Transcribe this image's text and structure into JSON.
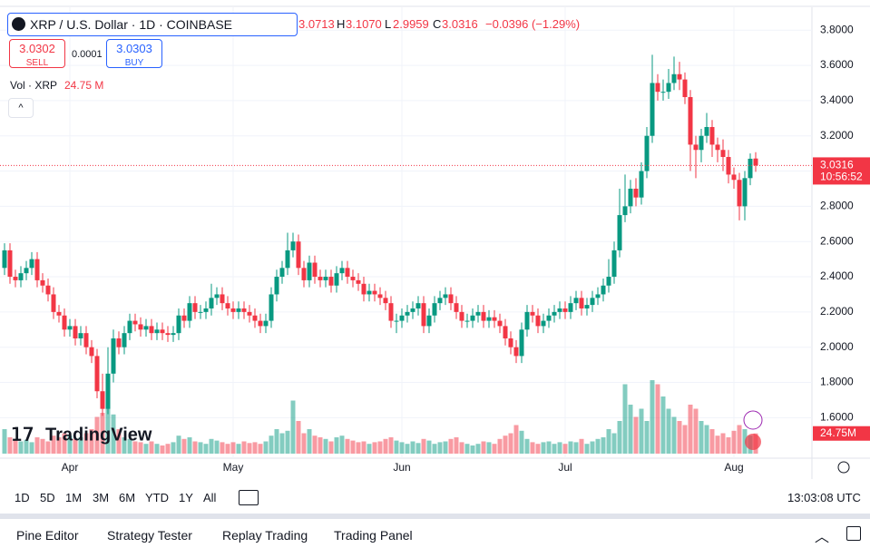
{
  "header": {
    "symbol": "XRP / U.S. Dollar · 1D · COINBASE",
    "open": "3.0713",
    "high_key": "H",
    "high": "3.1070",
    "low_key": "L",
    "low": "2.9959",
    "close_key": "C",
    "close": "3.0316",
    "change": "−0.0396 (−1.29%)",
    "sell_price": "3.0302",
    "sell": "SELL",
    "spread": "0.0001",
    "buy_price": "3.0303",
    "buy": "BUY",
    "volume_title": "Vol · XRP",
    "volume_value": "24.75 M"
  },
  "chart_data": {
    "type": "candlestick",
    "up_color": "#089981",
    "down_color": "#f23645",
    "grid": true,
    "ylim": [
      1.37,
      3.93
    ],
    "yticks": [
      {
        "value": 1.6,
        "label": "1.6000"
      },
      {
        "value": 1.8,
        "label": "1.8000"
      },
      {
        "value": 2.0,
        "label": "2.0000"
      },
      {
        "value": 2.2,
        "label": "2.2000"
      },
      {
        "value": 2.4,
        "label": "2.4000"
      },
      {
        "value": 2.6,
        "label": "2.6000"
      },
      {
        "value": 2.8,
        "label": "2.8000"
      },
      {
        "value": 3.0,
        "label": "3.0000"
      },
      {
        "value": 3.2,
        "label": "3.2000"
      },
      {
        "value": 3.4,
        "label": "3.4000"
      },
      {
        "value": 3.6,
        "label": "3.6000"
      },
      {
        "value": 3.8,
        "label": "3.8000"
      }
    ],
    "vlim": [
      0,
      100
    ],
    "categories": [
      null,
      null,
      null,
      null,
      null,
      null,
      null,
      null,
      null,
      null,
      null,
      null,
      "Apr",
      null,
      null,
      null,
      null,
      null,
      null,
      null,
      null,
      null,
      null,
      null,
      null,
      null,
      null,
      null,
      null,
      null,
      null,
      null,
      null,
      null,
      null,
      null,
      null,
      null,
      null,
      null,
      null,
      null,
      "May",
      null,
      null,
      null,
      null,
      null,
      null,
      null,
      null,
      null,
      null,
      null,
      null,
      null,
      null,
      null,
      null,
      null,
      null,
      null,
      null,
      null,
      null,
      null,
      null,
      null,
      null,
      null,
      null,
      null,
      null,
      "Jun",
      null,
      null,
      null,
      null,
      null,
      null,
      null,
      null,
      null,
      null,
      null,
      null,
      null,
      null,
      null,
      null,
      null,
      null,
      null,
      null,
      null,
      null,
      null,
      null,
      null,
      null,
      null,
      null,
      null,
      "Jul",
      null,
      null,
      null,
      null,
      null,
      null,
      null,
      null,
      null,
      null,
      null,
      null,
      null,
      null,
      null,
      null,
      null,
      null,
      null,
      null,
      null,
      null,
      null,
      null,
      null,
      null,
      null,
      null,
      null,
      null,
      "Aug",
      null,
      null,
      null,
      null
    ],
    "ohlc": [
      [
        2.45,
        2.59,
        2.41,
        2.55
      ],
      [
        2.55,
        2.59,
        2.36,
        2.4
      ],
      [
        2.4,
        2.44,
        2.34,
        2.38
      ],
      [
        2.38,
        2.46,
        2.34,
        2.42
      ],
      [
        2.42,
        2.49,
        2.38,
        2.45
      ],
      [
        2.45,
        2.54,
        2.41,
        2.5
      ],
      [
        2.5,
        2.54,
        2.34,
        2.38
      ],
      [
        2.38,
        2.42,
        2.31,
        2.35
      ],
      [
        2.35,
        2.39,
        2.26,
        2.3
      ],
      [
        2.3,
        2.34,
        2.16,
        2.2
      ],
      [
        2.2,
        2.24,
        2.14,
        2.18
      ],
      [
        2.18,
        2.22,
        2.06,
        2.1
      ],
      [
        2.1,
        2.16,
        2.06,
        2.12
      ],
      [
        2.12,
        2.16,
        2.01,
        2.05
      ],
      [
        2.05,
        2.12,
        2.01,
        2.08
      ],
      [
        2.08,
        2.12,
        1.96,
        2.0
      ],
      [
        2.0,
        2.04,
        1.91,
        1.95
      ],
      [
        1.95,
        1.99,
        1.71,
        1.75
      ],
      [
        1.75,
        1.85,
        1.61,
        1.65
      ],
      [
        1.65,
        2.0,
        1.62,
        1.85
      ],
      [
        1.85,
        2.1,
        1.8,
        2.05
      ],
      [
        2.05,
        2.09,
        1.96,
        2.0
      ],
      [
        2.0,
        2.12,
        1.96,
        2.08
      ],
      [
        2.08,
        2.19,
        2.04,
        2.15
      ],
      [
        2.15,
        2.19,
        2.09,
        2.13
      ],
      [
        2.13,
        2.17,
        2.06,
        2.1
      ],
      [
        2.1,
        2.16,
        2.06,
        2.12
      ],
      [
        2.12,
        2.16,
        2.04,
        2.08
      ],
      [
        2.08,
        2.14,
        2.04,
        2.1
      ],
      [
        2.1,
        2.14,
        2.04,
        2.08
      ],
      [
        2.08,
        2.12,
        2.03,
        2.07
      ],
      [
        2.07,
        2.12,
        2.03,
        2.08
      ],
      [
        2.08,
        2.22,
        2.04,
        2.18
      ],
      [
        2.18,
        2.22,
        2.11,
        2.15
      ],
      [
        2.15,
        2.29,
        2.11,
        2.25
      ],
      [
        2.25,
        2.29,
        2.16,
        2.2
      ],
      [
        2.2,
        2.24,
        2.16,
        2.2
      ],
      [
        2.2,
        2.26,
        2.16,
        2.22
      ],
      [
        2.22,
        2.36,
        2.18,
        2.28
      ],
      [
        2.28,
        2.34,
        2.24,
        2.3
      ],
      [
        2.3,
        2.34,
        2.21,
        2.25
      ],
      [
        2.25,
        2.29,
        2.18,
        2.22
      ],
      [
        2.22,
        2.26,
        2.16,
        2.2
      ],
      [
        2.2,
        2.26,
        2.16,
        2.22
      ],
      [
        2.22,
        2.26,
        2.16,
        2.2
      ],
      [
        2.2,
        2.24,
        2.14,
        2.18
      ],
      [
        2.18,
        2.22,
        2.11,
        2.15
      ],
      [
        2.15,
        2.19,
        2.08,
        2.12
      ],
      [
        2.12,
        2.19,
        2.08,
        2.15
      ],
      [
        2.15,
        2.34,
        2.11,
        2.3
      ],
      [
        2.3,
        2.44,
        2.26,
        2.4
      ],
      [
        2.4,
        2.49,
        2.36,
        2.45
      ],
      [
        2.45,
        2.65,
        2.41,
        2.55
      ],
      [
        2.55,
        2.65,
        2.51,
        2.6
      ],
      [
        2.6,
        2.64,
        2.41,
        2.45
      ],
      [
        2.45,
        2.49,
        2.34,
        2.38
      ],
      [
        2.38,
        2.52,
        2.34,
        2.48
      ],
      [
        2.48,
        2.52,
        2.36,
        2.4
      ],
      [
        2.4,
        2.44,
        2.34,
        2.38
      ],
      [
        2.38,
        2.44,
        2.34,
        2.4
      ],
      [
        2.4,
        2.44,
        2.31,
        2.35
      ],
      [
        2.35,
        2.46,
        2.31,
        2.42
      ],
      [
        2.42,
        2.49,
        2.38,
        2.45
      ],
      [
        2.45,
        2.49,
        2.36,
        2.4
      ],
      [
        2.4,
        2.44,
        2.34,
        2.38
      ],
      [
        2.38,
        2.42,
        2.32,
        2.36
      ],
      [
        2.36,
        2.4,
        2.26,
        2.3
      ],
      [
        2.3,
        2.36,
        2.26,
        2.32
      ],
      [
        2.32,
        2.36,
        2.26,
        2.3
      ],
      [
        2.3,
        2.34,
        2.24,
        2.28
      ],
      [
        2.28,
        2.32,
        2.21,
        2.25
      ],
      [
        2.25,
        2.29,
        2.11,
        2.15
      ],
      [
        2.15,
        2.19,
        2.08,
        2.15
      ],
      [
        2.15,
        2.22,
        2.11,
        2.18
      ],
      [
        2.18,
        2.24,
        2.14,
        2.2
      ],
      [
        2.2,
        2.26,
        2.16,
        2.22
      ],
      [
        2.22,
        2.29,
        2.18,
        2.25
      ],
      [
        2.25,
        2.29,
        2.08,
        2.12
      ],
      [
        2.12,
        2.22,
        2.08,
        2.18
      ],
      [
        2.18,
        2.29,
        2.14,
        2.25
      ],
      [
        2.25,
        2.32,
        2.21,
        2.28
      ],
      [
        2.28,
        2.34,
        2.24,
        2.3
      ],
      [
        2.3,
        2.34,
        2.21,
        2.25
      ],
      [
        2.25,
        2.29,
        2.16,
        2.2
      ],
      [
        2.2,
        2.24,
        2.11,
        2.15
      ],
      [
        2.15,
        2.19,
        2.11,
        2.15
      ],
      [
        2.15,
        2.22,
        2.11,
        2.18
      ],
      [
        2.18,
        2.24,
        2.14,
        2.2
      ],
      [
        2.2,
        2.24,
        2.11,
        2.15
      ],
      [
        2.15,
        2.21,
        2.11,
        2.17
      ],
      [
        2.17,
        2.21,
        2.11,
        2.15
      ],
      [
        2.15,
        2.19,
        2.08,
        2.12
      ],
      [
        2.12,
        2.16,
        2.01,
        2.05
      ],
      [
        2.05,
        2.09,
        1.96,
        2.0
      ],
      [
        2.0,
        2.04,
        1.91,
        1.95
      ],
      [
        1.95,
        2.14,
        1.91,
        2.1
      ],
      [
        2.1,
        2.24,
        2.06,
        2.2
      ],
      [
        2.2,
        2.24,
        2.14,
        2.18
      ],
      [
        2.18,
        2.22,
        2.08,
        2.12
      ],
      [
        2.12,
        2.19,
        2.08,
        2.15
      ],
      [
        2.15,
        2.22,
        2.11,
        2.18
      ],
      [
        2.18,
        2.24,
        2.14,
        2.2
      ],
      [
        2.2,
        2.26,
        2.16,
        2.22
      ],
      [
        2.22,
        2.26,
        2.16,
        2.2
      ],
      [
        2.2,
        2.29,
        2.16,
        2.25
      ],
      [
        2.25,
        2.32,
        2.21,
        2.28
      ],
      [
        2.28,
        2.32,
        2.18,
        2.22
      ],
      [
        2.22,
        2.28,
        2.18,
        2.24
      ],
      [
        2.24,
        2.32,
        2.2,
        2.28
      ],
      [
        2.28,
        2.34,
        2.24,
        2.3
      ],
      [
        2.3,
        2.39,
        2.26,
        2.35
      ],
      [
        2.35,
        2.5,
        2.31,
        2.4
      ],
      [
        2.4,
        2.6,
        2.36,
        2.55
      ],
      [
        2.55,
        2.9,
        2.51,
        2.75
      ],
      [
        2.75,
        2.98,
        2.71,
        2.8
      ],
      [
        2.8,
        2.95,
        2.76,
        2.9
      ],
      [
        2.9,
        2.96,
        2.8,
        2.85
      ],
      [
        2.85,
        3.05,
        2.81,
        3.0
      ],
      [
        3.0,
        3.25,
        2.96,
        3.2
      ],
      [
        3.2,
        3.66,
        3.16,
        3.5
      ],
      [
        3.5,
        3.55,
        3.4,
        3.45
      ],
      [
        3.45,
        3.52,
        3.4,
        3.45
      ],
      [
        3.45,
        3.58,
        3.41,
        3.5
      ],
      [
        3.5,
        3.65,
        3.46,
        3.55
      ],
      [
        3.55,
        3.62,
        3.46,
        3.52
      ],
      [
        3.52,
        3.56,
        3.38,
        3.42
      ],
      [
        3.42,
        3.46,
        3.0,
        3.15
      ],
      [
        3.15,
        3.2,
        2.96,
        3.12
      ],
      [
        3.12,
        3.24,
        3.05,
        3.2
      ],
      [
        3.2,
        3.33,
        3.16,
        3.25
      ],
      [
        3.25,
        3.29,
        3.08,
        3.15
      ],
      [
        3.15,
        3.19,
        3.05,
        3.12
      ],
      [
        3.12,
        3.18,
        3.0,
        3.08
      ],
      [
        3.08,
        3.12,
        2.93,
        2.98
      ],
      [
        2.98,
        3.02,
        2.9,
        2.95
      ],
      [
        2.95,
        2.99,
        2.72,
        2.8
      ],
      [
        2.8,
        3.0,
        2.72,
        2.96
      ],
      [
        2.96,
        3.1,
        2.92,
        3.07
      ],
      [
        3.0713,
        3.107,
        2.9959,
        3.0316
      ]
    ],
    "volume": [
      30,
      20,
      18,
      15,
      17,
      14,
      20,
      18,
      15,
      22,
      20,
      25,
      22,
      18,
      20,
      25,
      30,
      45,
      50,
      55,
      48,
      30,
      20,
      18,
      15,
      14,
      12,
      15,
      12,
      10,
      12,
      14,
      22,
      18,
      20,
      15,
      14,
      12,
      18,
      16,
      14,
      12,
      14,
      12,
      15,
      13,
      14,
      12,
      15,
      22,
      30,
      25,
      28,
      65,
      40,
      25,
      30,
      22,
      20,
      18,
      15,
      20,
      22,
      18,
      16,
      14,
      15,
      12,
      14,
      15,
      18,
      20,
      16,
      14,
      12,
      15,
      13,
      18,
      16,
      12,
      14,
      15,
      18,
      20,
      14,
      12,
      10,
      12,
      15,
      14,
      12,
      18,
      22,
      25,
      35,
      28,
      18,
      14,
      12,
      14,
      15,
      12,
      14,
      12,
      15,
      14,
      18,
      12,
      15,
      18,
      20,
      30,
      25,
      40,
      85,
      60,
      45,
      55,
      40,
      90,
      85,
      70,
      55,
      45,
      40,
      35,
      60,
      55,
      40,
      35,
      30,
      22,
      25,
      20,
      28,
      35,
      30,
      22,
      24.75
    ],
    "last_price_label": "3.0316",
    "countdown": "10:56:52",
    "volume_label": "24.75M"
  },
  "toolbar": {
    "ranges": [
      "1D",
      "5D",
      "1M",
      "3M",
      "6M",
      "YTD",
      "1Y",
      "All"
    ],
    "clock": "13:03:08 UTC"
  },
  "panel": {
    "tabs": [
      "Pine Editor",
      "Strategy Tester",
      "Replay Trading",
      "Trading Panel"
    ]
  },
  "brand": "TradingView"
}
